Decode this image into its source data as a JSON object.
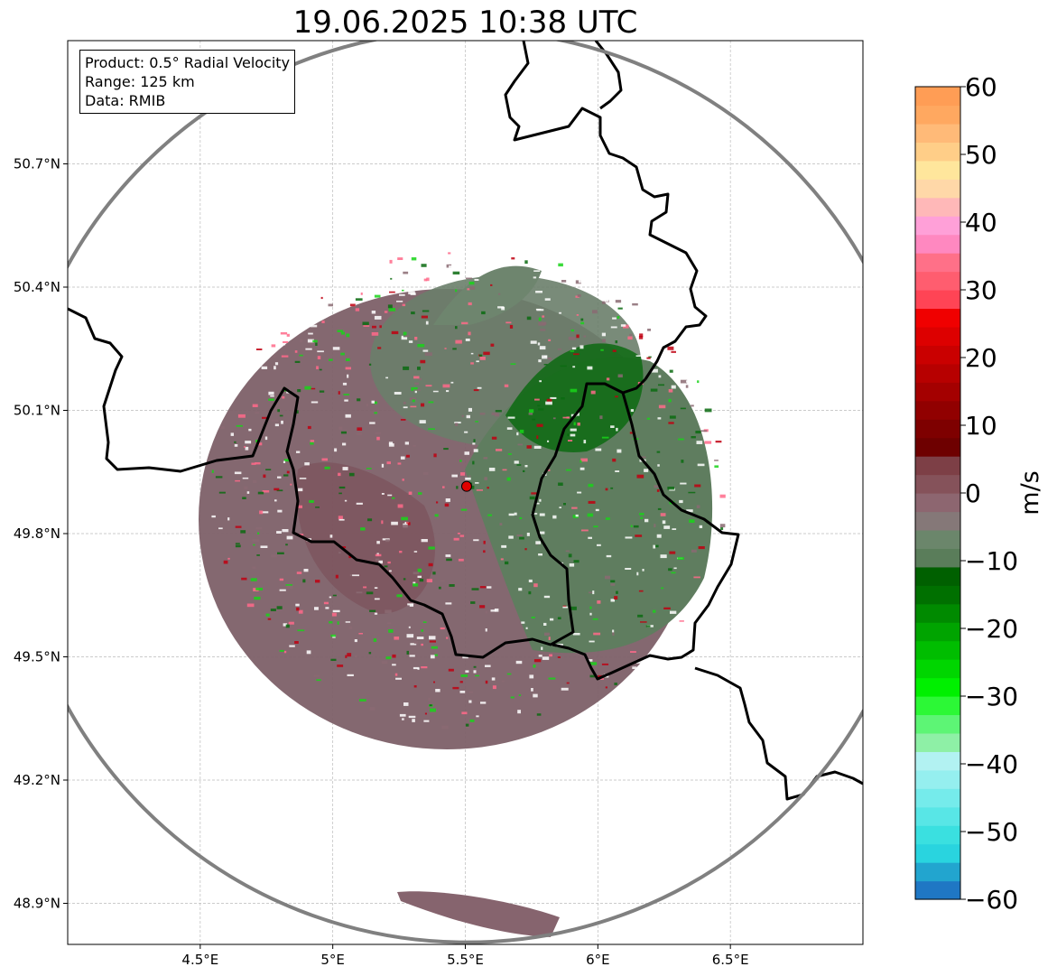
{
  "title": "19.06.2025 10:38 UTC",
  "info_box": {
    "product": "Product: 0.5° Radial Velocity",
    "range": "Range: 125 km",
    "data": "Data: RMIB"
  },
  "map": {
    "lon_ticks": [
      {
        "value": 4.5,
        "label": "4.5°E"
      },
      {
        "value": 5.0,
        "label": "5°E"
      },
      {
        "value": 5.5,
        "label": "5.5°E"
      },
      {
        "value": 6.0,
        "label": "6°E"
      },
      {
        "value": 6.5,
        "label": "6.5°E"
      }
    ],
    "lat_ticks": [
      {
        "value": 50.7,
        "label": "50.7°N"
      },
      {
        "value": 50.4,
        "label": "50.4°N"
      },
      {
        "value": 50.1,
        "label": "50.1°N"
      },
      {
        "value": 49.8,
        "label": "49.8°N"
      },
      {
        "value": 49.5,
        "label": "49.5°N"
      },
      {
        "value": 49.2,
        "label": "49.2°N"
      },
      {
        "value": 48.9,
        "label": "48.9°N"
      }
    ],
    "lon_range": [
      4.0,
      7.0
    ],
    "lat_range": [
      48.8,
      51.0
    ],
    "radar_site": {
      "lon": 5.505,
      "lat": 49.915
    },
    "range_km": 125,
    "grid": true,
    "colors": {
      "range_ring": "#808080",
      "border": "#000000",
      "radar_marker": "#e00000",
      "grid": "#bbbbbb"
    }
  },
  "colorbar": {
    "label": "m/s",
    "min": -60,
    "max": 60,
    "ticks": [
      60,
      50,
      40,
      30,
      20,
      10,
      0,
      -10,
      -20,
      -30,
      -40,
      -50,
      -60
    ],
    "tick_labels": [
      "60",
      "50",
      "40",
      "30",
      "20",
      "10",
      "0",
      "−10",
      "−20",
      "−30",
      "−40",
      "−50",
      "−60"
    ],
    "colors": [
      "#1f77c4",
      "#22a5cf",
      "#29d4df",
      "#3ae0e0",
      "#58e6e6",
      "#75ebeb",
      "#95efef",
      "#b2f2f2",
      "#8ef0a6",
      "#5df575",
      "#2cf836",
      "#00f000",
      "#00d600",
      "#00bd00",
      "#00a400",
      "#008a00",
      "#007000",
      "#006000",
      "#5a7d5a",
      "#6b866b",
      "#857878",
      "#8d6670",
      "#85525a",
      "#7d3f46",
      "#6e0000",
      "#7e0000",
      "#910000",
      "#a40000",
      "#b70000",
      "#ca0000",
      "#dd0000",
      "#f00000",
      "#ff4455",
      "#ff5d6f",
      "#ff7088",
      "#ff88c0",
      "#ffa0d8",
      "#ffb8b8",
      "#ffd8a8",
      "#ffe69c",
      "#ffce88",
      "#ffba78",
      "#ffa860",
      "#ff9d55"
    ]
  }
}
